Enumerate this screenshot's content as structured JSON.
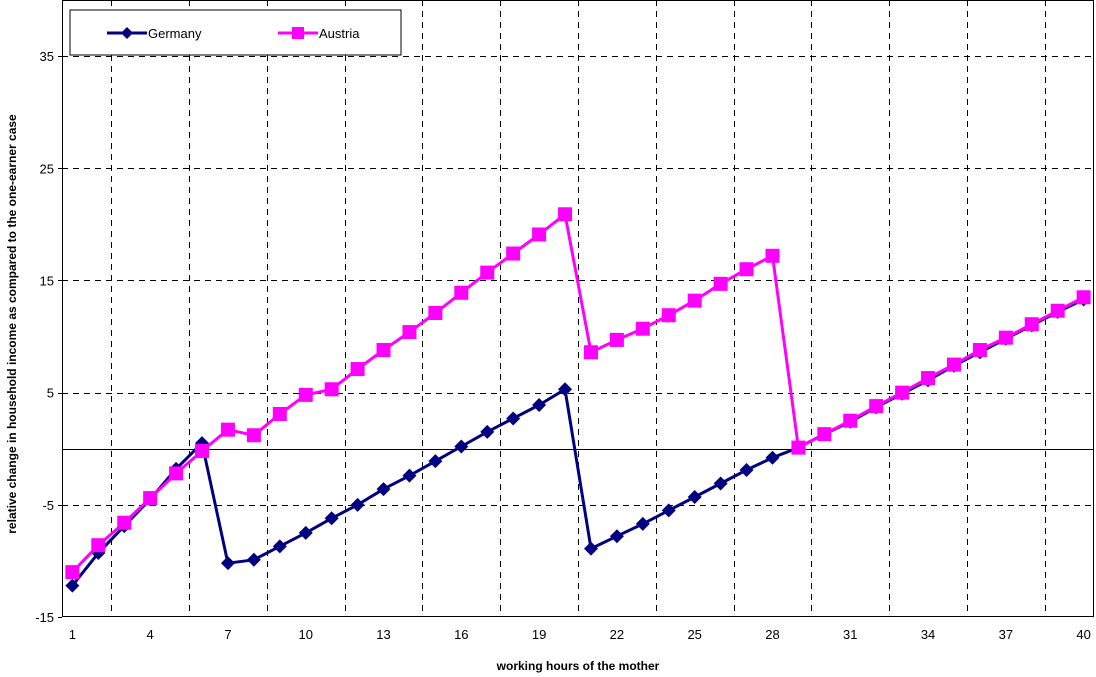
{
  "chart_data": {
    "type": "line",
    "xlabel": "working hours of the mother",
    "ylabel": "relative change in household income as compared to the one-earner case",
    "x": [
      1,
      2,
      3,
      4,
      5,
      6,
      7,
      8,
      9,
      10,
      11,
      12,
      13,
      14,
      15,
      16,
      17,
      18,
      19,
      20,
      21,
      22,
      23,
      24,
      25,
      26,
      27,
      28,
      29,
      30,
      31,
      32,
      33,
      34,
      35,
      36,
      37,
      38,
      39,
      40
    ],
    "x_ticks": [
      1,
      4,
      7,
      10,
      13,
      16,
      19,
      22,
      25,
      28,
      31,
      34,
      37,
      40
    ],
    "x_tick_labels": [
      "1",
      "4",
      "7",
      "10",
      "13",
      "16",
      "19",
      "22",
      "25",
      "28",
      "31",
      "34",
      "37",
      "40"
    ],
    "xlim": [
      0.6,
      40.4
    ],
    "ylim": [
      -15,
      40
    ],
    "y_ticks": [
      -15,
      -5,
      5,
      15,
      25,
      35
    ],
    "y_tick_labels": [
      "-15",
      "-5",
      "5",
      "15",
      "25",
      "35"
    ],
    "grid": true,
    "grid_style": "dashed",
    "zero_line": true,
    "legend_position": "top-left",
    "series": [
      {
        "name": "Germany",
        "color": "#000080",
        "marker": "diamond",
        "values": [
          -12.2,
          -9.3,
          -6.9,
          -4.5,
          -1.8,
          0.5,
          -10.2,
          -9.9,
          -8.7,
          -7.5,
          -6.2,
          -5.0,
          -3.6,
          -2.4,
          -1.1,
          0.2,
          1.5,
          2.7,
          3.9,
          5.3,
          -8.9,
          -7.8,
          -6.7,
          -5.5,
          -4.3,
          -3.1,
          -1.9,
          -0.8,
          0.1,
          1.3,
          2.4,
          3.7,
          4.9,
          6.1,
          7.4,
          8.6,
          9.8,
          11.0,
          12.2,
          13.3
        ]
      },
      {
        "name": "Austria",
        "color": "#FF00FF",
        "marker": "square",
        "values": [
          -11.0,
          -8.6,
          -6.6,
          -4.4,
          -2.2,
          -0.2,
          1.7,
          1.2,
          3.1,
          4.8,
          5.3,
          7.1,
          8.8,
          10.4,
          12.1,
          13.9,
          15.7,
          17.4,
          19.1,
          20.9,
          8.6,
          9.7,
          10.7,
          11.9,
          13.2,
          14.7,
          16.0,
          17.2,
          0.1,
          1.3,
          2.5,
          3.8,
          5.0,
          6.3,
          7.5,
          8.8,
          9.9,
          11.1,
          12.3,
          13.5
        ]
      }
    ]
  }
}
